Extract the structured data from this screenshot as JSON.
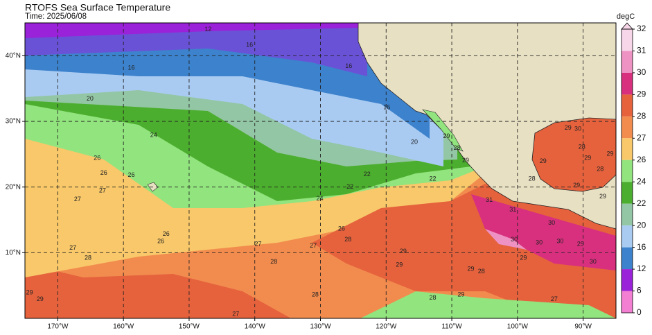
{
  "chart_data": {
    "type": "map",
    "title": "RTOFS Sea Surface Temperature",
    "subtitle": "Time: 2025/06/08",
    "xlim": [
      -175,
      -85
    ],
    "ylim": [
      0,
      45
    ],
    "xticks": [
      {
        "value": -170,
        "label": "170°W"
      },
      {
        "value": -160,
        "label": "160°W"
      },
      {
        "value": -150,
        "label": "150°W"
      },
      {
        "value": -140,
        "label": "140°W"
      },
      {
        "value": -130,
        "label": "130°W"
      },
      {
        "value": -120,
        "label": "120°W"
      },
      {
        "value": -110,
        "label": "110°W"
      },
      {
        "value": -100,
        "label": "100°W"
      },
      {
        "value": -90,
        "label": "90°W"
      }
    ],
    "yticks": [
      {
        "value": 10,
        "label": "10°N"
      },
      {
        "value": 20,
        "label": "20°N"
      },
      {
        "value": 30,
        "label": "30°N"
      },
      {
        "value": 40,
        "label": "40°N"
      }
    ],
    "grid": true,
    "colorbar": {
      "label": "degC",
      "ticks": [
        32,
        31,
        30,
        29,
        28,
        27,
        26,
        24,
        22,
        20,
        16,
        12,
        6,
        0
      ],
      "colors": [
        "#f7d6ea",
        "#ee92c4",
        "#d8307e",
        "#e5623d",
        "#f28c4e",
        "#f8c86a",
        "#92e47e",
        "#4cae2e",
        "#93c6a4",
        "#a9cbf2",
        "#3d82cc",
        "#9a22d8",
        "#f27fd2"
      ]
    },
    "contour_labels": [
      {
        "value": 12,
        "lon": -147.1,
        "lat": 44.0
      },
      {
        "value": 16,
        "lon": -140.8,
        "lat": 41.6
      },
      {
        "value": 16,
        "lon": -158.8,
        "lat": 38.1
      },
      {
        "value": 16,
        "lon": -125.7,
        "lat": 38.4
      },
      {
        "value": 20,
        "lon": -165.1,
        "lat": 33.4
      },
      {
        "value": 16,
        "lon": -119.9,
        "lat": 32.1
      },
      {
        "value": 24,
        "lon": -155.4,
        "lat": 27.9
      },
      {
        "value": 20,
        "lon": -115.7,
        "lat": 26.8
      },
      {
        "value": 26,
        "lon": -164.0,
        "lat": 24.4
      },
      {
        "value": 26,
        "lon": -163.0,
        "lat": 22.1
      },
      {
        "value": 26,
        "lon": -158.8,
        "lat": 21.8
      },
      {
        "value": 27,
        "lon": -163.2,
        "lat": 19.4
      },
      {
        "value": 27,
        "lon": -167.0,
        "lat": 18.1
      },
      {
        "value": 22,
        "lon": -122.9,
        "lat": 21.9
      },
      {
        "value": 22,
        "lon": -125.5,
        "lat": 20.0
      },
      {
        "value": 22,
        "lon": -112.9,
        "lat": 21.2
      },
      {
        "value": 24,
        "lon": -130.1,
        "lat": 18.2
      },
      {
        "value": 26,
        "lon": -153.5,
        "lat": 12.8
      },
      {
        "value": 26,
        "lon": -154.3,
        "lat": 11.7
      },
      {
        "value": 26,
        "lon": -126.8,
        "lat": 13.6
      },
      {
        "value": 28,
        "lon": -125.8,
        "lat": 12.0
      },
      {
        "value": 27,
        "lon": -139.5,
        "lat": 11.3
      },
      {
        "value": 27,
        "lon": -131.1,
        "lat": 11.0
      },
      {
        "value": 27,
        "lon": -167.7,
        "lat": 10.7
      },
      {
        "value": 28,
        "lon": -165.4,
        "lat": 9.2
      },
      {
        "value": 28,
        "lon": -137.1,
        "lat": 8.6
      },
      {
        "value": 29,
        "lon": -117.4,
        "lat": 10.2
      },
      {
        "value": 29,
        "lon": -118.0,
        "lat": 8.1
      },
      {
        "value": 29,
        "lon": -107.1,
        "lat": 7.5
      },
      {
        "value": 28,
        "lon": -105.5,
        "lat": 7.1
      },
      {
        "value": 30,
        "lon": -100.5,
        "lat": 12.0
      },
      {
        "value": 30,
        "lon": -96.7,
        "lat": 11.5
      },
      {
        "value": 30,
        "lon": -93.5,
        "lat": 11.7
      },
      {
        "value": 29,
        "lon": -90.4,
        "lat": 11.3
      },
      {
        "value": 30,
        "lon": -88.5,
        "lat": 8.6
      },
      {
        "value": 29,
        "lon": -99.1,
        "lat": 9.2
      },
      {
        "value": 31,
        "lon": -100.7,
        "lat": 16.5
      },
      {
        "value": 30,
        "lon": -94.8,
        "lat": 14.5
      },
      {
        "value": 31,
        "lon": -104.3,
        "lat": 18.0
      },
      {
        "value": 29,
        "lon": -110.8,
        "lat": 27.7
      },
      {
        "value": 28,
        "lon": -109.2,
        "lat": 25.9
      },
      {
        "value": 29,
        "lon": -107.9,
        "lat": 24.0
      },
      {
        "value": 28,
        "lon": -130.8,
        "lat": 3.6
      },
      {
        "value": 28,
        "lon": -112.9,
        "lat": 3.1
      },
      {
        "value": 29,
        "lon": -108.6,
        "lat": 3.6
      },
      {
        "value": 29,
        "lon": -174.3,
        "lat": 3.9
      },
      {
        "value": 29,
        "lon": -172.7,
        "lat": 2.9
      },
      {
        "value": 27,
        "lon": -142.9,
        "lat": 0.6
      },
      {
        "value": 27,
        "lon": -94.4,
        "lat": 2.9
      },
      {
        "value": 29,
        "lon": -96.1,
        "lat": 23.9
      },
      {
        "value": 29,
        "lon": -89.3,
        "lat": 24.4
      },
      {
        "value": 28,
        "lon": -97.8,
        "lat": 21.2
      },
      {
        "value": 29,
        "lon": -85.9,
        "lat": 25.0
      },
      {
        "value": 28,
        "lon": -87.4,
        "lat": 22.7
      },
      {
        "value": 29,
        "lon": -92.3,
        "lat": 29.0
      },
      {
        "value": 30,
        "lon": -90.8,
        "lat": 28.8
      },
      {
        "value": 28,
        "lon": -90.2,
        "lat": 26.1
      },
      {
        "value": 29,
        "lon": -91.0,
        "lat": 20.2
      },
      {
        "value": 29,
        "lon": -87.0,
        "lat": 18.5
      }
    ]
  }
}
